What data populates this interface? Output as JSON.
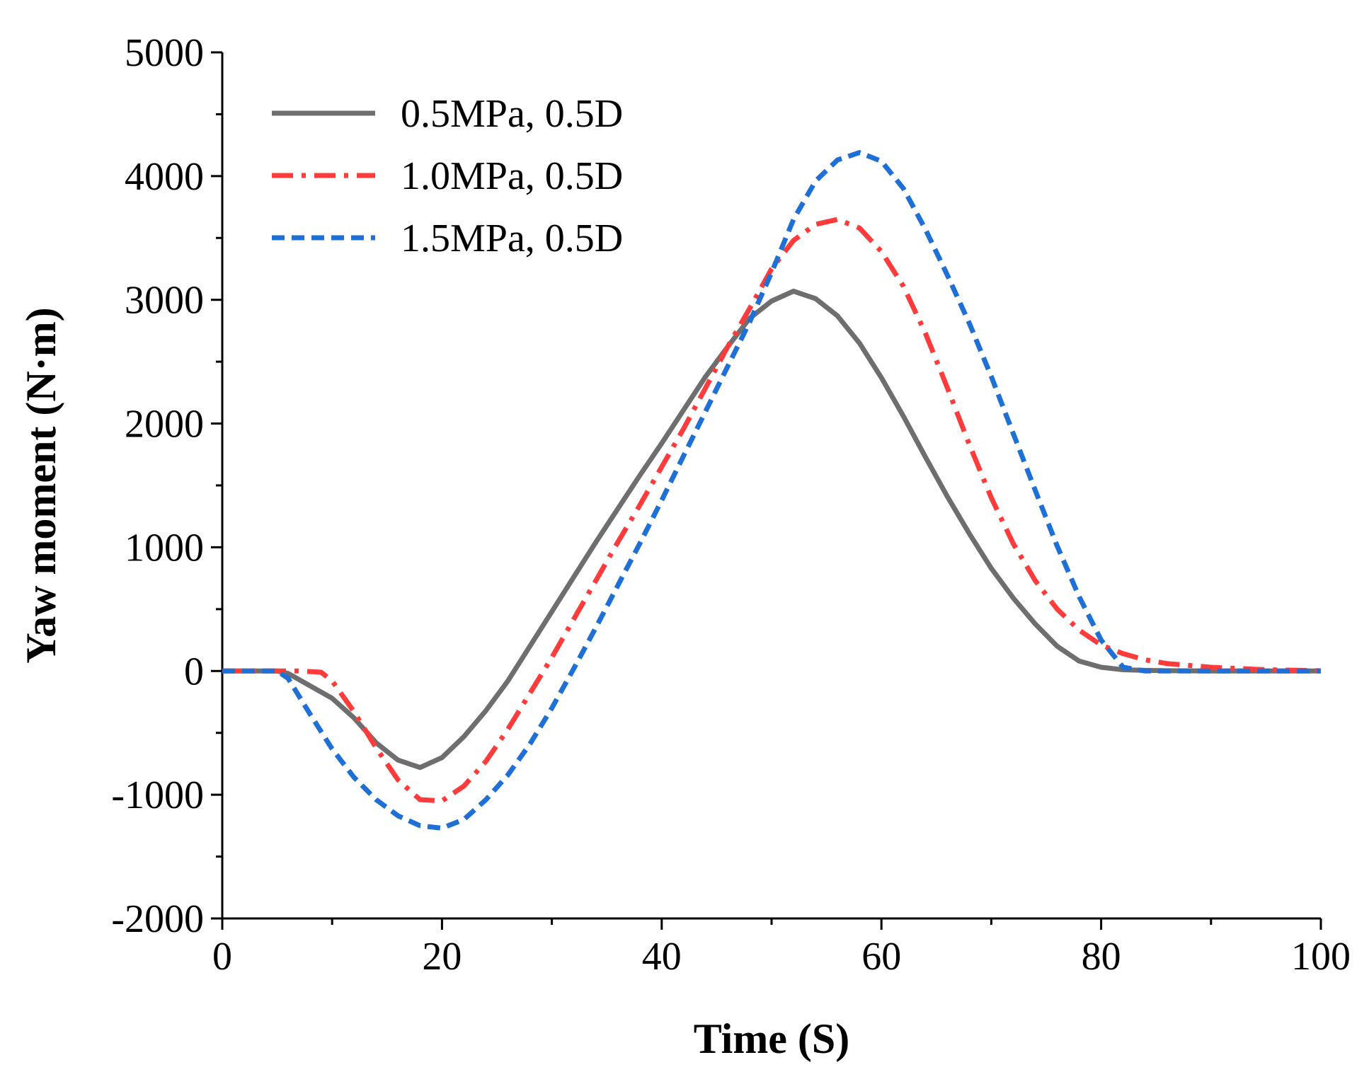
{
  "chart_data": {
    "type": "line",
    "title": "",
    "xlabel": "Time (S)",
    "ylabel": "Yaw moment (N·m)",
    "xlim": [
      0,
      100
    ],
    "ylim": [
      -2000,
      5000
    ],
    "xticks": [
      0,
      20,
      40,
      60,
      80,
      100
    ],
    "yticks": [
      -2000,
      -1000,
      0,
      1000,
      2000,
      3000,
      4000,
      5000
    ],
    "grid": false,
    "legend_position": "top-left",
    "series": [
      {
        "name": "0.5MPa, 0.5D",
        "color": "#6e6e6e",
        "dash": "solid",
        "x": [
          0,
          5,
          6,
          8,
          10,
          12,
          14,
          16,
          18,
          20,
          22,
          24,
          26,
          28,
          30,
          32,
          34,
          36,
          38,
          40,
          42,
          44,
          46,
          48,
          50,
          52,
          54,
          56,
          58,
          60,
          62,
          64,
          66,
          68,
          70,
          72,
          74,
          76,
          78,
          80,
          82,
          84,
          86,
          90,
          95,
          100
        ],
        "y": [
          0,
          0,
          -20,
          -120,
          -220,
          -380,
          -580,
          -720,
          -780,
          -700,
          -530,
          -320,
          -80,
          200,
          480,
          760,
          1040,
          1310,
          1580,
          1840,
          2110,
          2380,
          2620,
          2850,
          2990,
          3070,
          3010,
          2870,
          2650,
          2370,
          2060,
          1730,
          1410,
          1110,
          830,
          590,
          380,
          200,
          80,
          30,
          10,
          5,
          2,
          0,
          0,
          0
        ]
      },
      {
        "name": "1.0MPa, 0.5D",
        "color": "#ff3b3b",
        "dash": "dashdot",
        "x": [
          0,
          5,
          7,
          9,
          10,
          12,
          14,
          16,
          18,
          20,
          22,
          24,
          26,
          28,
          30,
          32,
          34,
          36,
          38,
          40,
          42,
          44,
          46,
          48,
          50,
          52,
          54,
          56,
          58,
          60,
          62,
          64,
          66,
          68,
          70,
          72,
          74,
          76,
          78,
          80,
          82,
          84,
          86,
          90,
          95,
          100
        ],
        "y": [
          0,
          0,
          0,
          -10,
          -80,
          -330,
          -620,
          -880,
          -1040,
          -1050,
          -930,
          -730,
          -470,
          -180,
          110,
          420,
          730,
          1040,
          1340,
          1650,
          1960,
          2290,
          2620,
          2930,
          3250,
          3480,
          3610,
          3650,
          3580,
          3390,
          3110,
          2730,
          2290,
          1830,
          1400,
          1030,
          730,
          500,
          330,
          210,
          140,
          90,
          60,
          30,
          10,
          2
        ]
      },
      {
        "name": "1.5MPa, 0.5D",
        "color": "#1e6fd6",
        "dash": "dashed",
        "x": [
          0,
          5,
          6,
          8,
          10,
          12,
          14,
          16,
          18,
          20,
          22,
          24,
          26,
          28,
          30,
          32,
          34,
          36,
          38,
          40,
          42,
          44,
          46,
          48,
          50,
          52,
          54,
          56,
          58,
          60,
          62,
          64,
          66,
          68,
          70,
          72,
          74,
          76,
          78,
          80,
          82,
          84,
          86,
          90,
          95,
          100
        ],
        "y": [
          0,
          0,
          -60,
          -350,
          -630,
          -860,
          -1040,
          -1170,
          -1250,
          -1270,
          -1200,
          -1040,
          -840,
          -590,
          -300,
          20,
          350,
          690,
          1030,
          1380,
          1740,
          2100,
          2460,
          2820,
          3220,
          3650,
          3960,
          4130,
          4190,
          4120,
          3900,
          3570,
          3200,
          2810,
          2380,
          1920,
          1460,
          1010,
          600,
          250,
          30,
          0,
          0,
          0,
          0,
          0
        ]
      }
    ]
  }
}
